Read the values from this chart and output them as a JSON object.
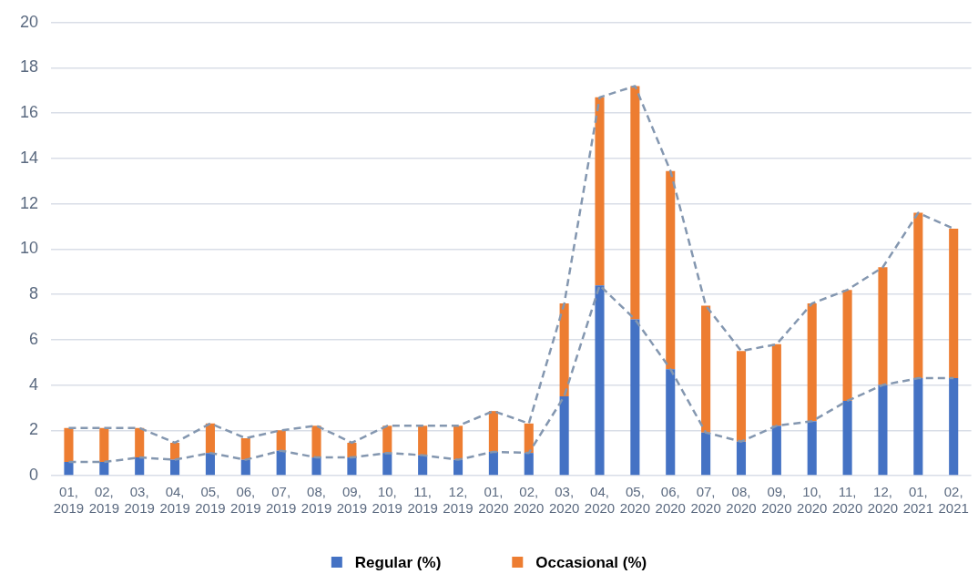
{
  "chart_data": {
    "type": "bar",
    "stacked": true,
    "categories": [
      "01, 2019",
      "02, 2019",
      "03, 2019",
      "04, 2019",
      "05, 2019",
      "06, 2019",
      "07, 2019",
      "08, 2019",
      "09, 2019",
      "10, 2019",
      "11, 2019",
      "12, 2019",
      "01, 2020",
      "02, 2020",
      "03, 2020",
      "04, 2020",
      "05, 2020",
      "06, 2020",
      "07, 2020",
      "08, 2020",
      "09, 2020",
      "10, 2020",
      "11, 2020",
      "12, 2020",
      "01, 2021",
      "02, 2021"
    ],
    "series": [
      {
        "name": "Regular (%)",
        "color": "#4472c4",
        "values": [
          0.6,
          0.6,
          0.8,
          0.7,
          1.0,
          0.7,
          1.1,
          0.8,
          0.8,
          1.0,
          0.9,
          0.7,
          1.05,
          1.0,
          3.5,
          8.4,
          6.9,
          4.7,
          1.9,
          1.5,
          2.2,
          2.4,
          3.3,
          4.0,
          4.3,
          4.3
        ]
      },
      {
        "name": "Occasional (%)",
        "color": "#ed7d31",
        "values": [
          1.5,
          1.5,
          1.3,
          0.75,
          1.3,
          0.95,
          0.9,
          1.4,
          0.65,
          1.2,
          1.3,
          1.5,
          1.8,
          1.3,
          4.1,
          8.3,
          10.3,
          8.75,
          5.6,
          4.0,
          3.6,
          5.2,
          4.9,
          5.2,
          7.3,
          6.6
        ]
      },
      {
        "type": "line",
        "color": "#8497b0",
        "values": [
          0.6,
          0.6,
          0.8,
          0.7,
          1.0,
          0.7,
          1.1,
          0.8,
          0.8,
          1.0,
          0.9,
          0.7,
          1.05,
          1.0,
          3.5,
          8.4,
          6.9,
          4.7,
          1.9,
          1.5,
          2.2,
          2.4,
          3.3,
          4.0,
          4.3,
          4.3
        ]
      },
      {
        "type": "line",
        "color": "#8497b0",
        "values": [
          2.1,
          2.1,
          2.1,
          1.45,
          2.3,
          1.65,
          2.0,
          2.2,
          1.45,
          2.2,
          2.2,
          2.2,
          2.85,
          2.3,
          7.6,
          16.7,
          17.2,
          13.45,
          7.5,
          5.5,
          5.8,
          7.6,
          8.2,
          9.2,
          11.6,
          10.9
        ]
      }
    ],
    "ylim": [
      0,
      20
    ],
    "yticks": [
      0,
      2,
      4,
      6,
      8,
      10,
      12,
      14,
      16,
      18,
      20
    ],
    "grid": "y",
    "legend": "bottom",
    "line_style": "dashed"
  }
}
